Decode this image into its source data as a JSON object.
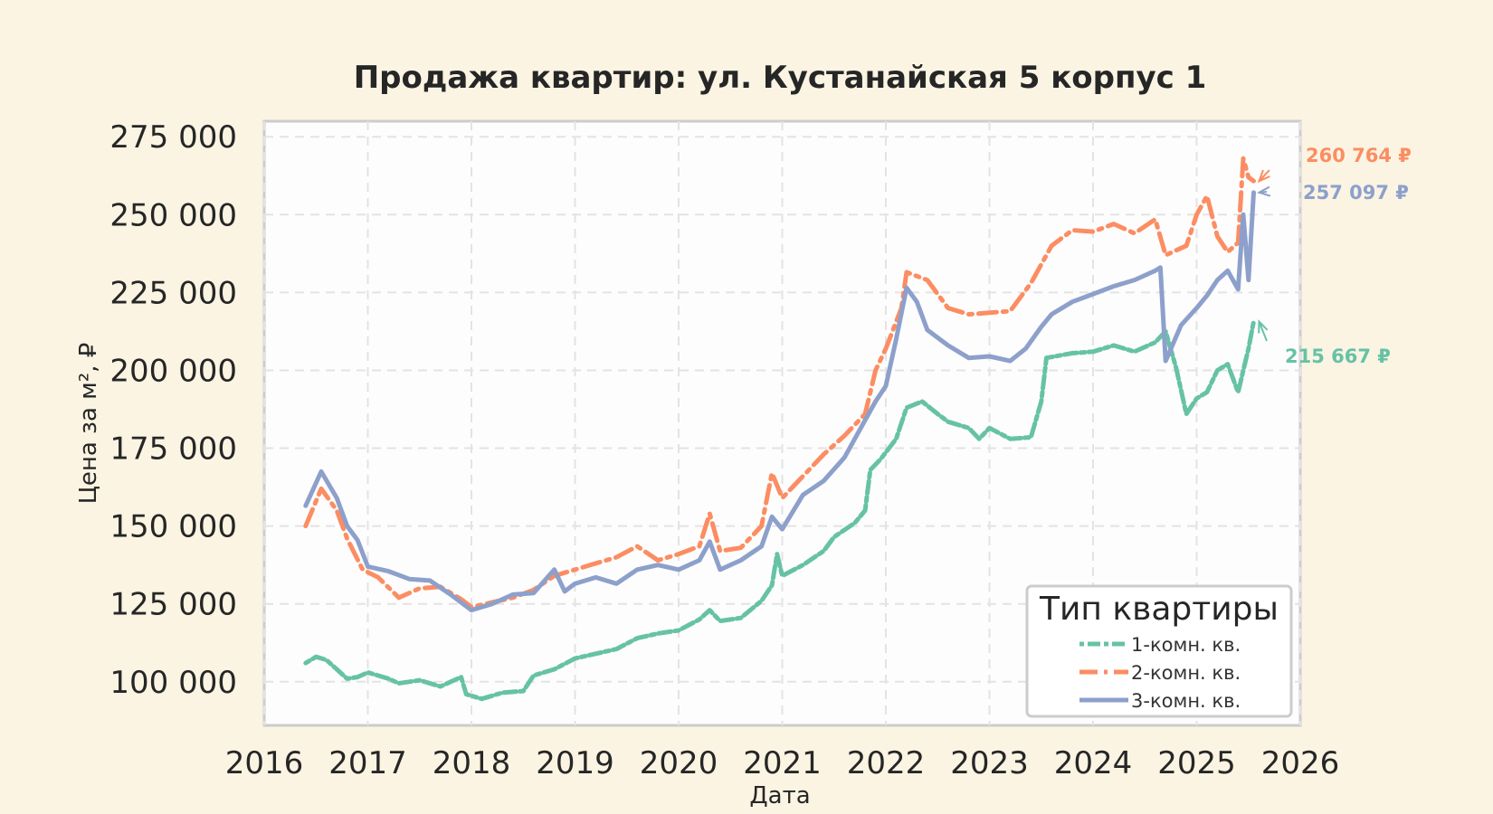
{
  "chart_data": {
    "type": "line",
    "title": "Продажа квартир: ул. Кустанайская 5 корпус 1",
    "xlabel": "Дата",
    "ylabel": "Цена за м², ₽",
    "xlim": [
      2016,
      2026
    ],
    "ylim": [
      86000,
      280000
    ],
    "x_ticks": [
      "2016",
      "2017",
      "2018",
      "2019",
      "2020",
      "2021",
      "2022",
      "2023",
      "2024",
      "2025",
      "2026"
    ],
    "y_ticks": [
      100000,
      125000,
      150000,
      175000,
      200000,
      225000,
      250000,
      275000
    ],
    "y_tick_labels": [
      "100 000",
      "125 000",
      "150 000",
      "175 000",
      "200 000",
      "225 000",
      "250 000",
      "275 000"
    ],
    "grid": true,
    "legend": {
      "title": "Тип квартиры",
      "position": "bottom-right"
    },
    "series": [
      {
        "name": "1-комн. кв.",
        "color": "#66C2A5",
        "style": "dotted-dash",
        "end_label": "215 667 ₽",
        "points": [
          [
            2016.4,
            106000
          ],
          [
            2016.5,
            108000
          ],
          [
            2016.6,
            107000
          ],
          [
            2016.7,
            104000
          ],
          [
            2016.8,
            101000
          ],
          [
            2016.9,
            101500
          ],
          [
            2017.0,
            103000
          ],
          [
            2017.2,
            101000
          ],
          [
            2017.3,
            99500
          ],
          [
            2017.5,
            100500
          ],
          [
            2017.7,
            98500
          ],
          [
            2017.9,
            101500
          ],
          [
            2017.95,
            96000
          ],
          [
            2018.1,
            94500
          ],
          [
            2018.2,
            95500
          ],
          [
            2018.3,
            96500
          ],
          [
            2018.5,
            97000
          ],
          [
            2018.6,
            102000
          ],
          [
            2018.8,
            104000
          ],
          [
            2019.0,
            107500
          ],
          [
            2019.2,
            109000
          ],
          [
            2019.4,
            110500
          ],
          [
            2019.6,
            114000
          ],
          [
            2019.8,
            115500
          ],
          [
            2020.0,
            116500
          ],
          [
            2020.2,
            120000
          ],
          [
            2020.3,
            123000
          ],
          [
            2020.4,
            119500
          ],
          [
            2020.6,
            120500
          ],
          [
            2020.8,
            126000
          ],
          [
            2020.9,
            131000
          ],
          [
            2020.95,
            141000
          ],
          [
            2021.0,
            134000
          ],
          [
            2021.2,
            137500
          ],
          [
            2021.4,
            142000
          ],
          [
            2021.5,
            146500
          ],
          [
            2021.7,
            151000
          ],
          [
            2021.8,
            155000
          ],
          [
            2021.85,
            168000
          ],
          [
            2021.95,
            171500
          ],
          [
            2022.1,
            178000
          ],
          [
            2022.2,
            188000
          ],
          [
            2022.35,
            190000
          ],
          [
            2022.5,
            186000
          ],
          [
            2022.6,
            183500
          ],
          [
            2022.8,
            181500
          ],
          [
            2022.9,
            178000
          ],
          [
            2023.0,
            181500
          ],
          [
            2023.2,
            178000
          ],
          [
            2023.4,
            178500
          ],
          [
            2023.5,
            190000
          ],
          [
            2023.55,
            204000
          ],
          [
            2023.8,
            205500
          ],
          [
            2024.0,
            206000
          ],
          [
            2024.2,
            208000
          ],
          [
            2024.4,
            206000
          ],
          [
            2024.6,
            209000
          ],
          [
            2024.7,
            212500
          ],
          [
            2024.8,
            201000
          ],
          [
            2024.9,
            186000
          ],
          [
            2025.0,
            191000
          ],
          [
            2025.1,
            193000
          ],
          [
            2025.2,
            200000
          ],
          [
            2025.3,
            202000
          ],
          [
            2025.4,
            193000
          ],
          [
            2025.5,
            207000
          ],
          [
            2025.55,
            215667
          ]
        ]
      },
      {
        "name": "2-комн. кв.",
        "color": "#FC8D62",
        "style": "dash-dot",
        "end_label": "260 764 ₽",
        "points": [
          [
            2016.4,
            150000
          ],
          [
            2016.55,
            162000
          ],
          [
            2016.7,
            155000
          ],
          [
            2016.8,
            146000
          ],
          [
            2016.95,
            136000
          ],
          [
            2017.1,
            133500
          ],
          [
            2017.3,
            127000
          ],
          [
            2017.5,
            130000
          ],
          [
            2017.7,
            130500
          ],
          [
            2017.9,
            126500
          ],
          [
            2018.0,
            124000
          ],
          [
            2018.2,
            125500
          ],
          [
            2018.4,
            127000
          ],
          [
            2018.6,
            129500
          ],
          [
            2018.8,
            134000
          ],
          [
            2019.0,
            136000
          ],
          [
            2019.2,
            138000
          ],
          [
            2019.4,
            140000
          ],
          [
            2019.6,
            143500
          ],
          [
            2019.8,
            139000
          ],
          [
            2020.0,
            141000
          ],
          [
            2020.2,
            143500
          ],
          [
            2020.3,
            154000
          ],
          [
            2020.4,
            142000
          ],
          [
            2020.6,
            143000
          ],
          [
            2020.8,
            150000
          ],
          [
            2020.9,
            167000
          ],
          [
            2021.0,
            159000
          ],
          [
            2021.2,
            166000
          ],
          [
            2021.4,
            173000
          ],
          [
            2021.6,
            179000
          ],
          [
            2021.8,
            186000
          ],
          [
            2021.9,
            200000
          ],
          [
            2022.0,
            207000
          ],
          [
            2022.15,
            220000
          ],
          [
            2022.2,
            231500
          ],
          [
            2022.4,
            229000
          ],
          [
            2022.6,
            220000
          ],
          [
            2022.8,
            218000
          ],
          [
            2023.0,
            218500
          ],
          [
            2023.2,
            219000
          ],
          [
            2023.4,
            228000
          ],
          [
            2023.6,
            240000
          ],
          [
            2023.8,
            245000
          ],
          [
            2024.0,
            244500
          ],
          [
            2024.2,
            247000
          ],
          [
            2024.4,
            244000
          ],
          [
            2024.6,
            248500
          ],
          [
            2024.7,
            237000
          ],
          [
            2024.9,
            240000
          ],
          [
            2025.0,
            250000
          ],
          [
            2025.1,
            256000
          ],
          [
            2025.2,
            243000
          ],
          [
            2025.3,
            238000
          ],
          [
            2025.4,
            241000
          ],
          [
            2025.45,
            268000
          ],
          [
            2025.5,
            262000
          ],
          [
            2025.55,
            260764
          ]
        ]
      },
      {
        "name": "3-комн. кв.",
        "color": "#8DA0CB",
        "style": "solid",
        "end_label": "257 097 ₽",
        "points": [
          [
            2016.4,
            156500
          ],
          [
            2016.55,
            167500
          ],
          [
            2016.7,
            159000
          ],
          [
            2016.8,
            150000
          ],
          [
            2016.9,
            145500
          ],
          [
            2017.0,
            137000
          ],
          [
            2017.2,
            135500
          ],
          [
            2017.4,
            133000
          ],
          [
            2017.6,
            132500
          ],
          [
            2017.8,
            128000
          ],
          [
            2018.0,
            123000
          ],
          [
            2018.2,
            125000
          ],
          [
            2018.4,
            128000
          ],
          [
            2018.6,
            128500
          ],
          [
            2018.8,
            136000
          ],
          [
            2018.9,
            129000
          ],
          [
            2019.0,
            131500
          ],
          [
            2019.2,
            133500
          ],
          [
            2019.4,
            131500
          ],
          [
            2019.6,
            136000
          ],
          [
            2019.8,
            137500
          ],
          [
            2020.0,
            136000
          ],
          [
            2020.2,
            139000
          ],
          [
            2020.3,
            145000
          ],
          [
            2020.4,
            136000
          ],
          [
            2020.6,
            139000
          ],
          [
            2020.8,
            143500
          ],
          [
            2020.9,
            153000
          ],
          [
            2021.0,
            149000
          ],
          [
            2021.2,
            160000
          ],
          [
            2021.4,
            164500
          ],
          [
            2021.6,
            172000
          ],
          [
            2021.8,
            184000
          ],
          [
            2021.9,
            190000
          ],
          [
            2022.0,
            195000
          ],
          [
            2022.1,
            210000
          ],
          [
            2022.2,
            226500
          ],
          [
            2022.3,
            222000
          ],
          [
            2022.4,
            213000
          ],
          [
            2022.6,
            208000
          ],
          [
            2022.8,
            204000
          ],
          [
            2023.0,
            204500
          ],
          [
            2023.2,
            203000
          ],
          [
            2023.35,
            207000
          ],
          [
            2023.5,
            214000
          ],
          [
            2023.6,
            218000
          ],
          [
            2023.8,
            222000
          ],
          [
            2024.0,
            224500
          ],
          [
            2024.2,
            227000
          ],
          [
            2024.4,
            229000
          ],
          [
            2024.6,
            232000
          ],
          [
            2024.65,
            233000
          ],
          [
            2024.7,
            203000
          ],
          [
            2024.85,
            214500
          ],
          [
            2025.0,
            220000
          ],
          [
            2025.1,
            224000
          ],
          [
            2025.2,
            229000
          ],
          [
            2025.3,
            232000
          ],
          [
            2025.4,
            226000
          ],
          [
            2025.45,
            250000
          ],
          [
            2025.5,
            229000
          ],
          [
            2025.55,
            257097
          ]
        ]
      }
    ]
  }
}
